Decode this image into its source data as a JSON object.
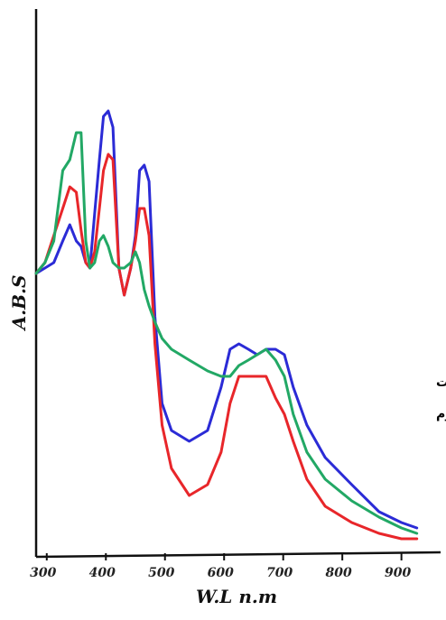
{
  "chart_data": {
    "type": "line",
    "x_label": "W.L n.m",
    "y_label": "A.B.S",
    "annotations": [
      "ث عينات",
      "لكروم"
    ],
    "x": [
      282,
      297,
      312,
      327,
      339,
      350,
      358,
      366,
      373,
      381,
      389,
      396,
      404,
      412,
      422,
      431,
      442,
      450,
      457,
      465,
      473,
      483,
      495,
      511,
      541,
      572,
      595,
      610,
      625,
      641,
      656,
      671,
      687,
      702,
      717,
      740,
      771,
      816,
      862,
      900,
      926
    ],
    "series": [
      {
        "color": "#2b2bd6",
        "values": [
          0.52,
          0.53,
          0.54,
          0.58,
          0.61,
          0.58,
          0.57,
          0.54,
          0.53,
          0.63,
          0.73,
          0.81,
          0.82,
          0.79,
          0.53,
          0.48,
          0.53,
          0.59,
          0.71,
          0.72,
          0.69,
          0.44,
          0.28,
          0.23,
          0.21,
          0.23,
          0.31,
          0.38,
          0.39,
          0.38,
          0.37,
          0.38,
          0.38,
          0.37,
          0.31,
          0.24,
          0.18,
          0.13,
          0.08,
          0.06,
          0.05
        ]
      },
      {
        "color": "#e8262a",
        "values": [
          0.52,
          0.54,
          0.59,
          0.64,
          0.68,
          0.67,
          0.6,
          0.54,
          0.53,
          0.56,
          0.64,
          0.71,
          0.74,
          0.73,
          0.53,
          0.48,
          0.53,
          0.58,
          0.64,
          0.64,
          0.59,
          0.39,
          0.24,
          0.16,
          0.11,
          0.13,
          0.19,
          0.28,
          0.33,
          0.33,
          0.33,
          0.33,
          0.29,
          0.26,
          0.21,
          0.14,
          0.09,
          0.06,
          0.04,
          0.03,
          0.03
        ]
      },
      {
        "color": "#22a865",
        "values": [
          0.52,
          0.54,
          0.58,
          0.71,
          0.73,
          0.78,
          0.78,
          0.58,
          0.53,
          0.54,
          0.58,
          0.59,
          0.57,
          0.54,
          0.53,
          0.53,
          0.54,
          0.56,
          0.54,
          0.49,
          0.46,
          0.43,
          0.4,
          0.38,
          0.36,
          0.34,
          0.33,
          0.33,
          0.35,
          0.36,
          0.37,
          0.38,
          0.36,
          0.33,
          0.26,
          0.19,
          0.14,
          0.1,
          0.07,
          0.05,
          0.04
        ]
      }
    ],
    "xlim": [
      282,
      954
    ],
    "ylim": [
      0,
      1
    ],
    "xticks": [
      300,
      400,
      500,
      600,
      700,
      800,
      900
    ]
  }
}
